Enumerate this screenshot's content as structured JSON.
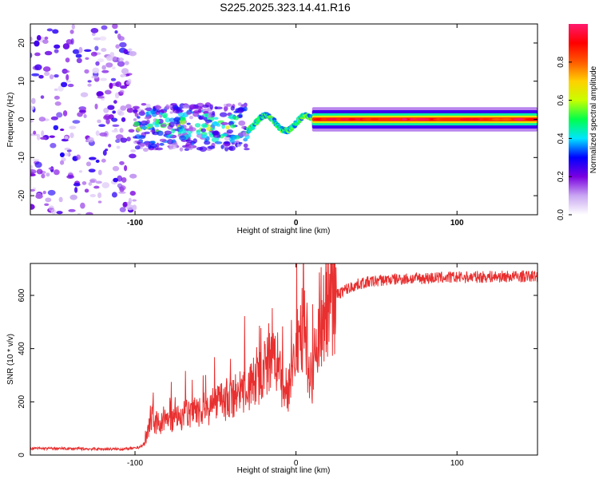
{
  "title": "S225.2025.323.14.41.R16",
  "chart_data": [
    {
      "type": "heatmap",
      "name": "spectrogram",
      "xlabel": "Height of straight line (km)",
      "ylabel": "Frequency (Hz)",
      "xlim": [
        -165,
        150
      ],
      "ylim": [
        -25,
        25
      ],
      "xticks": [
        -100,
        0,
        100
      ],
      "xtick_labels": [
        "-100",
        "0",
        "100"
      ],
      "yticks": [
        -20,
        -10,
        0,
        10,
        20
      ],
      "ytick_labels": [
        "-20",
        "-10",
        "0",
        "10",
        "20"
      ],
      "colorbar": {
        "label": "Normalized spectral amplitude",
        "range": [
          0,
          1
        ],
        "ticks": [
          0.0,
          0.2,
          0.4,
          0.6,
          0.8
        ],
        "tick_labels": [
          "0.0",
          "0.2",
          "0.4",
          "0.6",
          "0.8"
        ],
        "colormap": [
          "#ffffff",
          "#c9a6f2",
          "#7a00e0",
          "#0000ff",
          "#00e5ff",
          "#00ff4c",
          "#c8ff00",
          "#ffd000",
          "#ff5a00",
          "#ff0000",
          "#ff1a6e"
        ]
      },
      "segments": [
        {
          "from_km": -165,
          "to_km": -100,
          "description": "broadband noise",
          "freq_center_hz": 0,
          "amplitude": 0.15
        },
        {
          "from_km": -100,
          "to_km": -30,
          "description": "scattered signal near 0 Hz",
          "freq_center_hz": -2,
          "amplitude": 0.35
        },
        {
          "from_km": -30,
          "to_km": 10,
          "description": "wavy tone",
          "freq_center_hz": -1,
          "amplitude": 0.45
        },
        {
          "from_km": 10,
          "to_km": 150,
          "description": "steady tone",
          "freq_center_hz": 0,
          "amplitude": 0.85
        }
      ]
    },
    {
      "type": "line",
      "name": "snr",
      "xlabel": "Height of straight line (km)",
      "ylabel": "SNR (10 * v/v)",
      "xlim": [
        -165,
        150
      ],
      "ylim": [
        0,
        720
      ],
      "xticks": [
        -100,
        0,
        100
      ],
      "xtick_labels": [
        "-100",
        "0",
        "100"
      ],
      "yticks": [
        0,
        200,
        400,
        600
      ],
      "ytick_labels": [
        "0",
        "200",
        "400",
        "600"
      ],
      "color": "#e83030",
      "series": [
        {
          "name": "SNR",
          "x": [
            -165,
            -140,
            -110,
            -100,
            -95,
            -92,
            -90,
            -88,
            -85,
            -80,
            -75,
            -70,
            -65,
            -60,
            -55,
            -50,
            -45,
            -40,
            -35,
            -30,
            -25,
            -22,
            -20,
            -18,
            -15,
            -12,
            -10,
            -8,
            -5,
            -2,
            0,
            3,
            5,
            8,
            10,
            12,
            15,
            20,
            25,
            30,
            40,
            50,
            60,
            80,
            100,
            120,
            150
          ],
          "y": [
            25,
            24,
            22,
            25,
            35,
            80,
            150,
            110,
            120,
            130,
            140,
            150,
            160,
            170,
            175,
            190,
            200,
            215,
            230,
            250,
            280,
            300,
            320,
            330,
            340,
            360,
            290,
            250,
            240,
            330,
            400,
            450,
            480,
            330,
            300,
            420,
            520,
            570,
            600,
            620,
            645,
            655,
            660,
            665,
            668,
            670,
            672
          ]
        }
      ]
    }
  ]
}
